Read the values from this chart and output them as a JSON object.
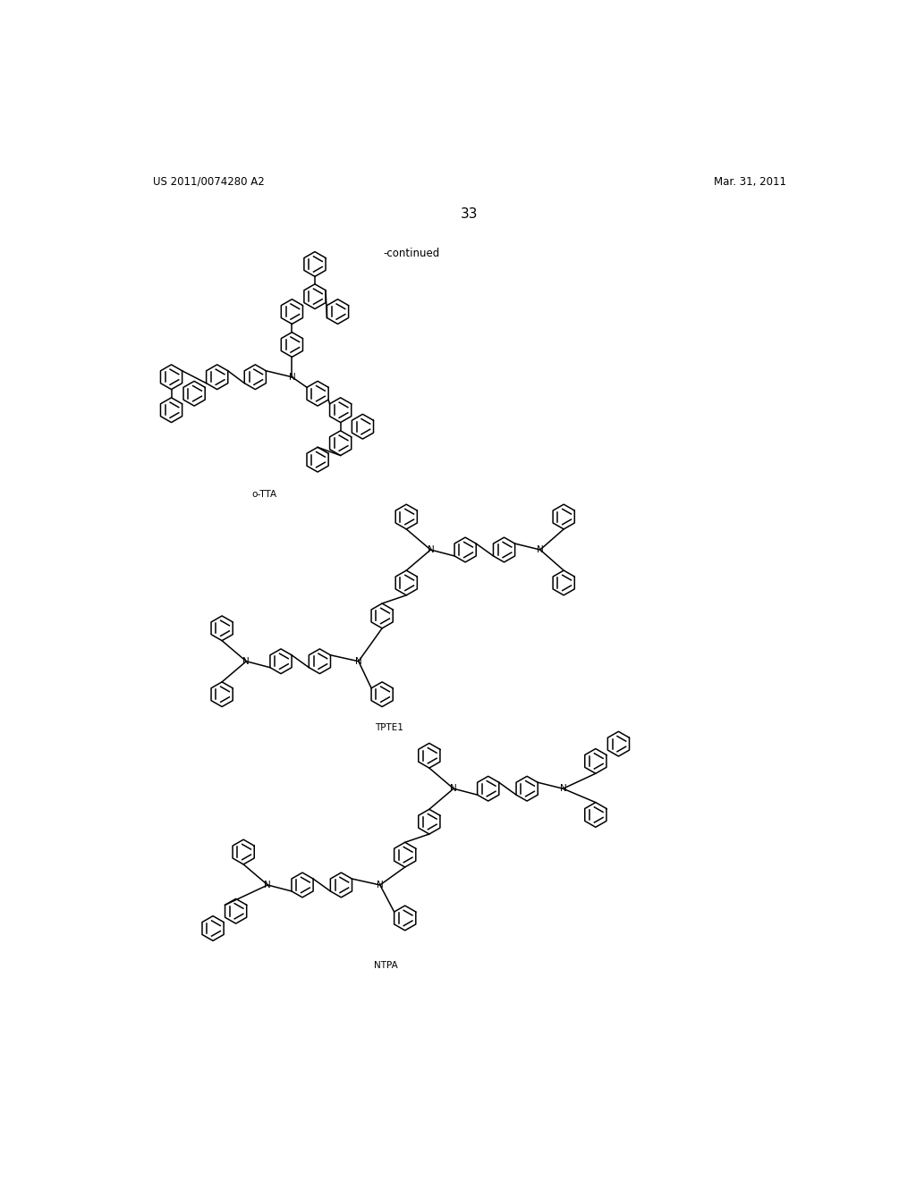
{
  "background_color": "#ffffff",
  "page_number": "33",
  "header_left": "US 2011/0074280 A2",
  "header_right": "Mar. 31, 2011",
  "continued_text": "-continued",
  "label_otta": "o-TTA",
  "label_tpte1": "TPTE1",
  "label_ntpa": "NTPA",
  "ring_size": 18,
  "lw": 1.1
}
